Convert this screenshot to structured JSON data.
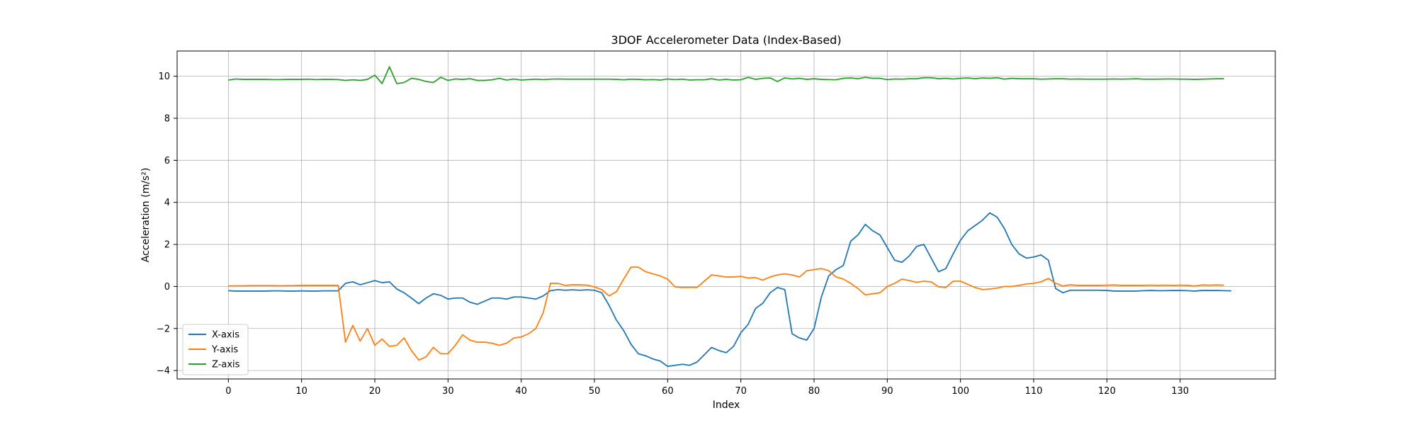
{
  "chart_data": {
    "type": "line",
    "title": "3DOF Accelerometer Data (Index-Based)",
    "xlabel": "Index",
    "ylabel": "Acceleration (m/s²)",
    "xlim": [
      -7,
      143
    ],
    "ylim": [
      -4.4,
      11.2
    ],
    "xticks": [
      0,
      10,
      20,
      30,
      40,
      50,
      60,
      70,
      80,
      90,
      100,
      110,
      120,
      130
    ],
    "yticks": [
      -4,
      -2,
      0,
      2,
      4,
      6,
      8,
      10
    ],
    "grid": true,
    "legend_position": "lower-left",
    "series": [
      {
        "name": "X-axis",
        "color": "#1f77b4",
        "values": [
          -0.2,
          -0.22,
          -0.22,
          -0.22,
          -0.22,
          -0.22,
          -0.21,
          -0.21,
          -0.22,
          -0.22,
          -0.21,
          -0.22,
          -0.22,
          -0.21,
          -0.21,
          -0.21,
          0.15,
          0.22,
          0.08,
          0.18,
          0.28,
          0.18,
          0.22,
          -0.12,
          -0.3,
          -0.55,
          -0.82,
          -0.55,
          -0.35,
          -0.42,
          -0.6,
          -0.55,
          -0.55,
          -0.75,
          -0.85,
          -0.7,
          -0.55,
          -0.55,
          -0.6,
          -0.5,
          -0.5,
          -0.55,
          -0.6,
          -0.45,
          -0.2,
          -0.15,
          -0.18,
          -0.16,
          -0.18,
          -0.16,
          -0.18,
          -0.3,
          -0.9,
          -1.6,
          -2.1,
          -2.75,
          -3.2,
          -3.3,
          -3.45,
          -3.55,
          -3.8,
          -3.75,
          -3.7,
          -3.75,
          -3.6,
          -3.25,
          -2.9,
          -3.05,
          -3.15,
          -2.85,
          -2.2,
          -1.8,
          -1.05,
          -0.8,
          -0.3,
          -0.05,
          -0.15,
          -2.25,
          -2.45,
          -2.55,
          -2.0,
          -0.5,
          0.5,
          0.8,
          1.0,
          2.15,
          2.45,
          2.95,
          2.65,
          2.45,
          1.85,
          1.25,
          1.15,
          1.45,
          1.9,
          2.0,
          1.35,
          0.7,
          0.85,
          1.55,
          2.2,
          2.65,
          2.9,
          3.15,
          3.5,
          3.3,
          2.75,
          2.0,
          1.55,
          1.35,
          1.4,
          1.5,
          1.25,
          -0.1,
          -0.3,
          -0.18,
          -0.18,
          -0.18,
          -0.18,
          -0.18,
          -0.19,
          -0.22,
          -0.22,
          -0.22,
          -0.22,
          -0.2,
          -0.19,
          -0.2,
          -0.2,
          -0.19,
          -0.19,
          -0.2,
          -0.22,
          -0.19,
          -0.19,
          -0.19,
          -0.2,
          -0.21
        ]
      },
      {
        "name": "Y-axis",
        "color": "#ff7f0e",
        "values": [
          0.02,
          0.03,
          0.03,
          0.04,
          0.04,
          0.04,
          0.04,
          0.03,
          0.04,
          0.04,
          0.05,
          0.05,
          0.05,
          0.05,
          0.05,
          0.05,
          -2.65,
          -1.85,
          -2.6,
          -2.0,
          -2.8,
          -2.5,
          -2.85,
          -2.8,
          -2.45,
          -3.05,
          -3.5,
          -3.35,
          -2.9,
          -3.2,
          -3.2,
          -2.8,
          -2.3,
          -2.55,
          -2.65,
          -2.65,
          -2.7,
          -2.8,
          -2.7,
          -2.45,
          -2.4,
          -2.25,
          -2.0,
          -1.25,
          0.15,
          0.15,
          0.05,
          0.08,
          0.08,
          0.06,
          -0.02,
          -0.15,
          -0.45,
          -0.25,
          0.35,
          0.92,
          0.92,
          0.7,
          0.6,
          0.5,
          0.35,
          -0.02,
          -0.05,
          -0.04,
          -0.05,
          0.25,
          0.55,
          0.5,
          0.45,
          0.45,
          0.48,
          0.4,
          0.42,
          0.3,
          0.45,
          0.55,
          0.6,
          0.55,
          0.45,
          0.75,
          0.8,
          0.85,
          0.75,
          0.45,
          0.35,
          0.15,
          -0.1,
          -0.4,
          -0.35,
          -0.3,
          0.0,
          0.15,
          0.35,
          0.28,
          0.2,
          0.25,
          0.22,
          -0.02,
          -0.05,
          0.25,
          0.25,
          0.1,
          -0.05,
          -0.15,
          -0.12,
          -0.08,
          0.0,
          0.0,
          0.05,
          0.12,
          0.15,
          0.22,
          0.38,
          0.15,
          0.02,
          0.08,
          0.05,
          0.05,
          0.05,
          0.05,
          0.06,
          0.07,
          0.05,
          0.05,
          0.05,
          0.05,
          0.06,
          0.05,
          0.06,
          0.05,
          0.06,
          0.05,
          0.02,
          0.07,
          0.06,
          0.07,
          0.06
        ]
      },
      {
        "name": "Z-axis",
        "color": "#2ca02c",
        "values": [
          9.82,
          9.87,
          9.85,
          9.85,
          9.85,
          9.85,
          9.84,
          9.84,
          9.85,
          9.85,
          9.85,
          9.86,
          9.84,
          9.85,
          9.85,
          9.84,
          9.8,
          9.83,
          9.8,
          9.85,
          10.05,
          9.65,
          10.45,
          9.65,
          9.7,
          9.9,
          9.85,
          9.75,
          9.7,
          9.95,
          9.8,
          9.87,
          9.85,
          9.88,
          9.8,
          9.8,
          9.83,
          9.9,
          9.82,
          9.87,
          9.82,
          9.84,
          9.86,
          9.84,
          9.86,
          9.87,
          9.86,
          9.86,
          9.86,
          9.86,
          9.86,
          9.86,
          9.86,
          9.85,
          9.83,
          9.86,
          9.85,
          9.83,
          9.84,
          9.82,
          9.87,
          9.84,
          9.86,
          9.82,
          9.83,
          9.83,
          9.88,
          9.82,
          9.85,
          9.82,
          9.83,
          9.95,
          9.85,
          9.9,
          9.92,
          9.75,
          9.92,
          9.87,
          9.9,
          9.85,
          9.88,
          9.85,
          9.84,
          9.83,
          9.9,
          9.92,
          9.88,
          9.95,
          9.9,
          9.9,
          9.84,
          9.87,
          9.86,
          9.88,
          9.88,
          9.93,
          9.93,
          9.88,
          9.9,
          9.87,
          9.9,
          9.92,
          9.88,
          9.92,
          9.9,
          9.93,
          9.86,
          9.9,
          9.88,
          9.88,
          9.88,
          9.86,
          9.87,
          9.88,
          9.88,
          9.86,
          9.87,
          9.86,
          9.86,
          9.86,
          9.86,
          9.87,
          9.86,
          9.87,
          9.88,
          9.86,
          9.86,
          9.86,
          9.87,
          9.87,
          9.86,
          9.86,
          9.85,
          9.86,
          9.87,
          9.88,
          9.88
        ]
      }
    ]
  }
}
